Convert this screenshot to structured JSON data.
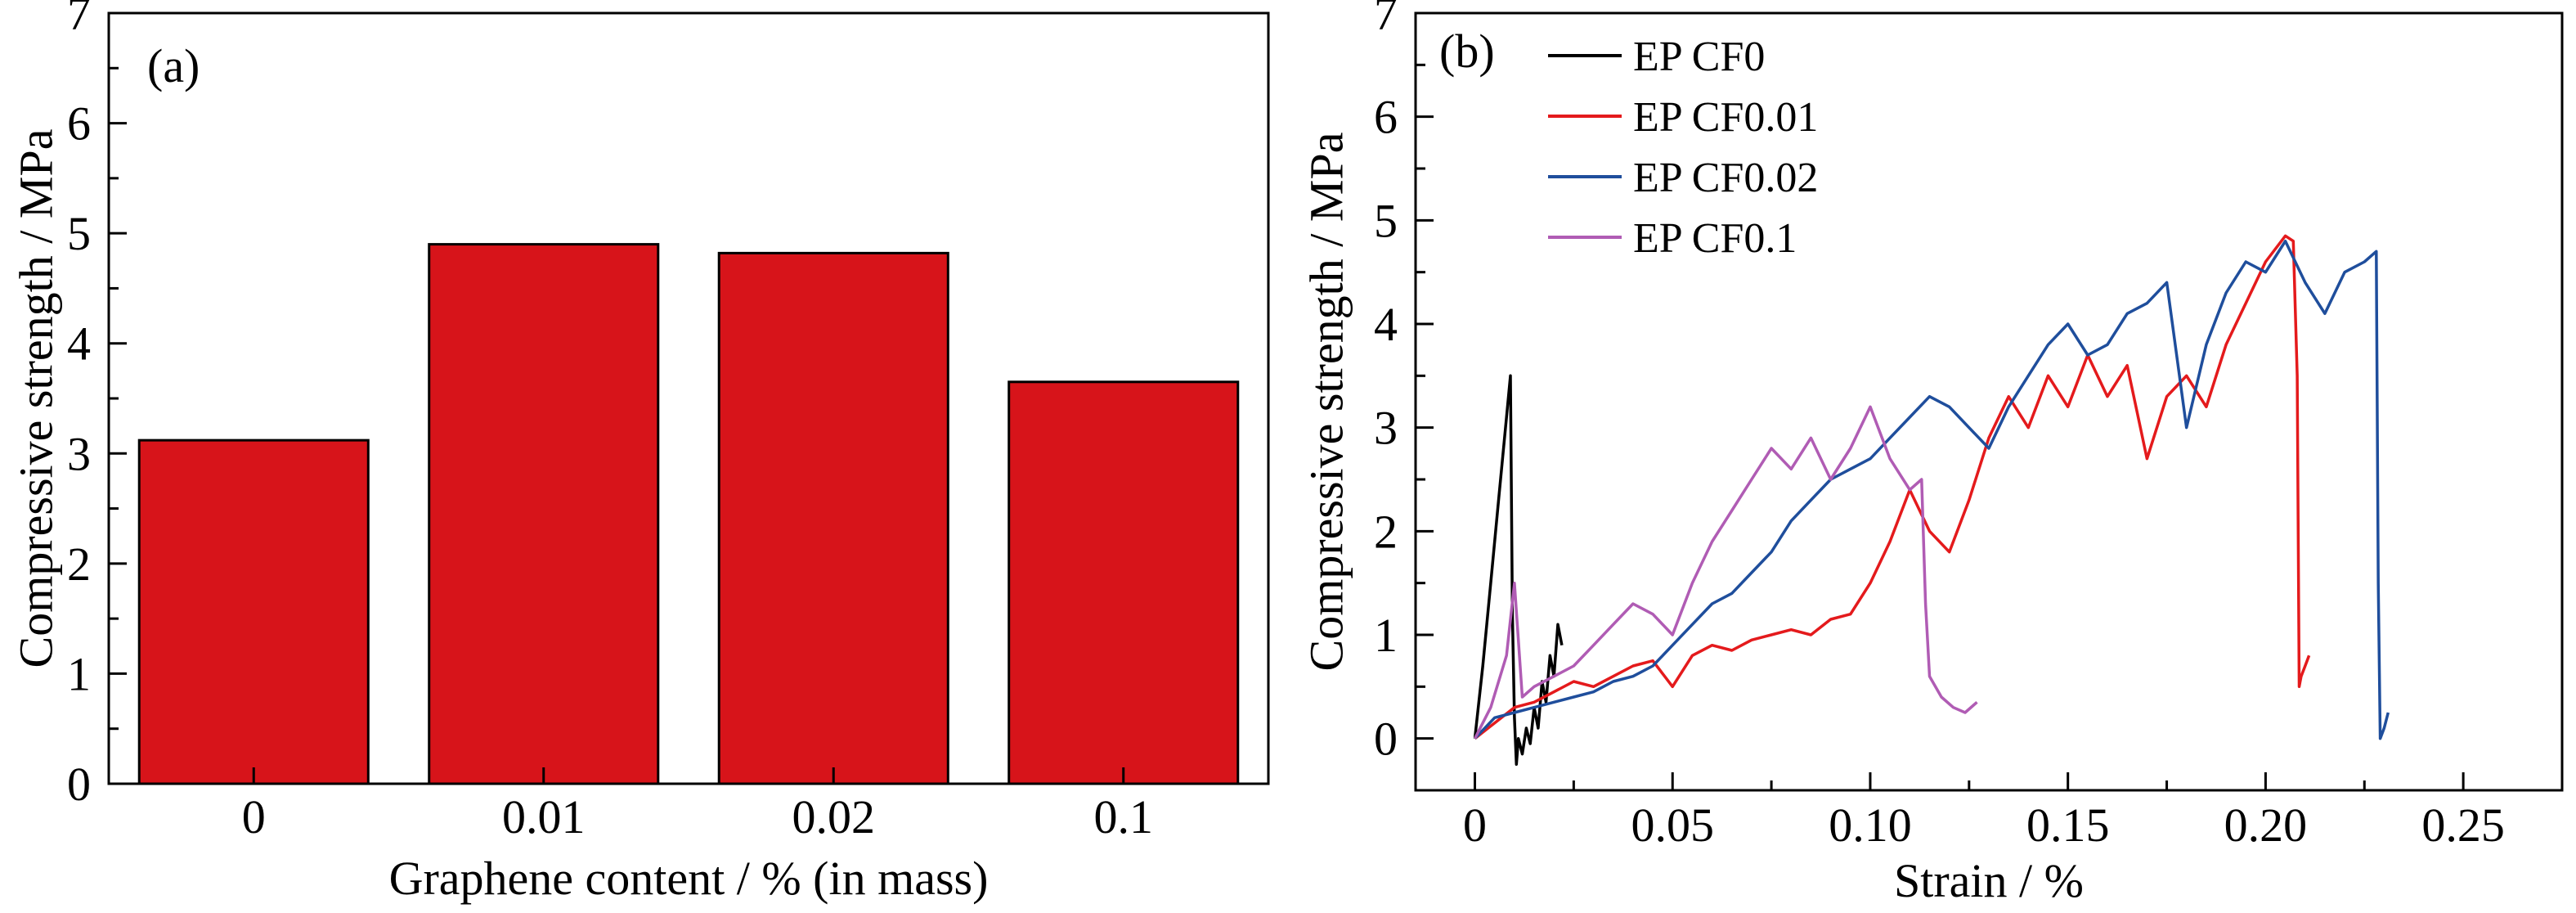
{
  "chart_data": [
    {
      "panel_label": "(a)",
      "type": "bar",
      "xlabel": "Graphene content / % (in mass)",
      "ylabel": "Compressive strength / MPa",
      "ylim": [
        0,
        7
      ],
      "yticks": [
        "0",
        "1",
        "2",
        "3",
        "4",
        "5",
        "6",
        "7"
      ],
      "categories": [
        "0",
        "0.01",
        "0.02",
        "0.1"
      ],
      "values": [
        3.12,
        4.9,
        4.82,
        3.65
      ],
      "bar_color": "#d7141a",
      "grid": false
    },
    {
      "panel_label": "(b)",
      "type": "line",
      "xlabel": "Strain / %",
      "ylabel": "Compressive strength / MPa",
      "xlim": [
        -0.015,
        0.275
      ],
      "ylim": [
        -0.5,
        7
      ],
      "xticks": [
        "0",
        "0.05",
        "0.10",
        "0.15",
        "0.20",
        "0.25"
      ],
      "yticks": [
        "0",
        "1",
        "2",
        "3",
        "4",
        "5",
        "6",
        "7"
      ],
      "legend_position": "top-left",
      "grid": false,
      "series": [
        {
          "name": "EP CF0",
          "color": "#000000",
          "x": [
            0.0,
            0.002,
            0.004,
            0.006,
            0.008,
            0.009,
            0.0095,
            0.01,
            0.0105,
            0.011,
            0.012,
            0.013,
            0.014,
            0.015,
            0.016,
            0.017,
            0.018,
            0.019,
            0.02,
            0.021,
            0.022
          ],
          "y": [
            0.0,
            0.7,
            1.5,
            2.3,
            3.1,
            3.5,
            1.2,
            0.2,
            -0.25,
            0.0,
            -0.15,
            0.1,
            -0.05,
            0.3,
            0.1,
            0.55,
            0.35,
            0.8,
            0.6,
            1.1,
            0.9
          ]
        },
        {
          "name": "EP CF0.01",
          "color": "#e41a1c",
          "x": [
            0.0,
            0.005,
            0.01,
            0.015,
            0.02,
            0.025,
            0.03,
            0.035,
            0.04,
            0.045,
            0.05,
            0.055,
            0.06,
            0.065,
            0.07,
            0.075,
            0.08,
            0.085,
            0.09,
            0.095,
            0.1,
            0.105,
            0.11,
            0.115,
            0.12,
            0.125,
            0.13,
            0.135,
            0.14,
            0.145,
            0.15,
            0.155,
            0.16,
            0.165,
            0.17,
            0.175,
            0.18,
            0.185,
            0.19,
            0.195,
            0.2,
            0.205,
            0.207,
            0.208,
            0.2085,
            0.209,
            0.21,
            0.211
          ],
          "y": [
            0.0,
            0.15,
            0.3,
            0.35,
            0.45,
            0.55,
            0.5,
            0.6,
            0.7,
            0.75,
            0.5,
            0.8,
            0.9,
            0.85,
            0.95,
            1.0,
            1.05,
            1.0,
            1.15,
            1.2,
            1.5,
            1.9,
            2.4,
            2.0,
            1.8,
            2.3,
            2.9,
            3.3,
            3.0,
            3.5,
            3.2,
            3.7,
            3.3,
            3.6,
            2.7,
            3.3,
            3.5,
            3.2,
            3.8,
            4.2,
            4.6,
            4.85,
            4.8,
            3.5,
            0.5,
            0.6,
            0.7,
            0.8
          ],
          "markers": false
        },
        {
          "name": "EP CF0.02",
          "color": "#1f4e9c",
          "x": [
            0.0,
            0.005,
            0.01,
            0.015,
            0.02,
            0.025,
            0.03,
            0.035,
            0.04,
            0.045,
            0.05,
            0.055,
            0.06,
            0.065,
            0.07,
            0.075,
            0.08,
            0.085,
            0.09,
            0.095,
            0.1,
            0.105,
            0.11,
            0.115,
            0.12,
            0.125,
            0.13,
            0.135,
            0.14,
            0.145,
            0.15,
            0.155,
            0.16,
            0.165,
            0.17,
            0.175,
            0.18,
            0.185,
            0.19,
            0.195,
            0.2,
            0.205,
            0.21,
            0.215,
            0.22,
            0.225,
            0.228,
            0.2285,
            0.229,
            0.23,
            0.231
          ],
          "y": [
            0.0,
            0.2,
            0.25,
            0.3,
            0.35,
            0.4,
            0.45,
            0.55,
            0.6,
            0.7,
            0.9,
            1.1,
            1.3,
            1.4,
            1.6,
            1.8,
            2.1,
            2.3,
            2.5,
            2.6,
            2.7,
            2.9,
            3.1,
            3.3,
            3.2,
            3.0,
            2.8,
            3.2,
            3.5,
            3.8,
            4.0,
            3.7,
            3.8,
            4.1,
            4.2,
            4.4,
            3.0,
            3.8,
            4.3,
            4.6,
            4.5,
            4.8,
            4.4,
            4.1,
            4.5,
            4.6,
            4.7,
            1.5,
            0.0,
            0.1,
            0.25
          ],
          "markers": false
        },
        {
          "name": "EP CF0.1",
          "color": "#b05cb4",
          "x": [
            0.0,
            0.004,
            0.008,
            0.01,
            0.012,
            0.015,
            0.02,
            0.025,
            0.03,
            0.035,
            0.04,
            0.045,
            0.05,
            0.055,
            0.06,
            0.065,
            0.07,
            0.075,
            0.08,
            0.085,
            0.09,
            0.095,
            0.1,
            0.105,
            0.11,
            0.113,
            0.114,
            0.115,
            0.118,
            0.121,
            0.124,
            0.127
          ],
          "y": [
            0.0,
            0.3,
            0.8,
            1.5,
            0.4,
            0.5,
            0.6,
            0.7,
            0.9,
            1.1,
            1.3,
            1.2,
            1.0,
            1.5,
            1.9,
            2.2,
            2.5,
            2.8,
            2.6,
            2.9,
            2.5,
            2.8,
            3.2,
            2.7,
            2.4,
            2.5,
            1.3,
            0.6,
            0.4,
            0.3,
            0.25,
            0.35
          ],
          "markers": false
        }
      ]
    }
  ]
}
